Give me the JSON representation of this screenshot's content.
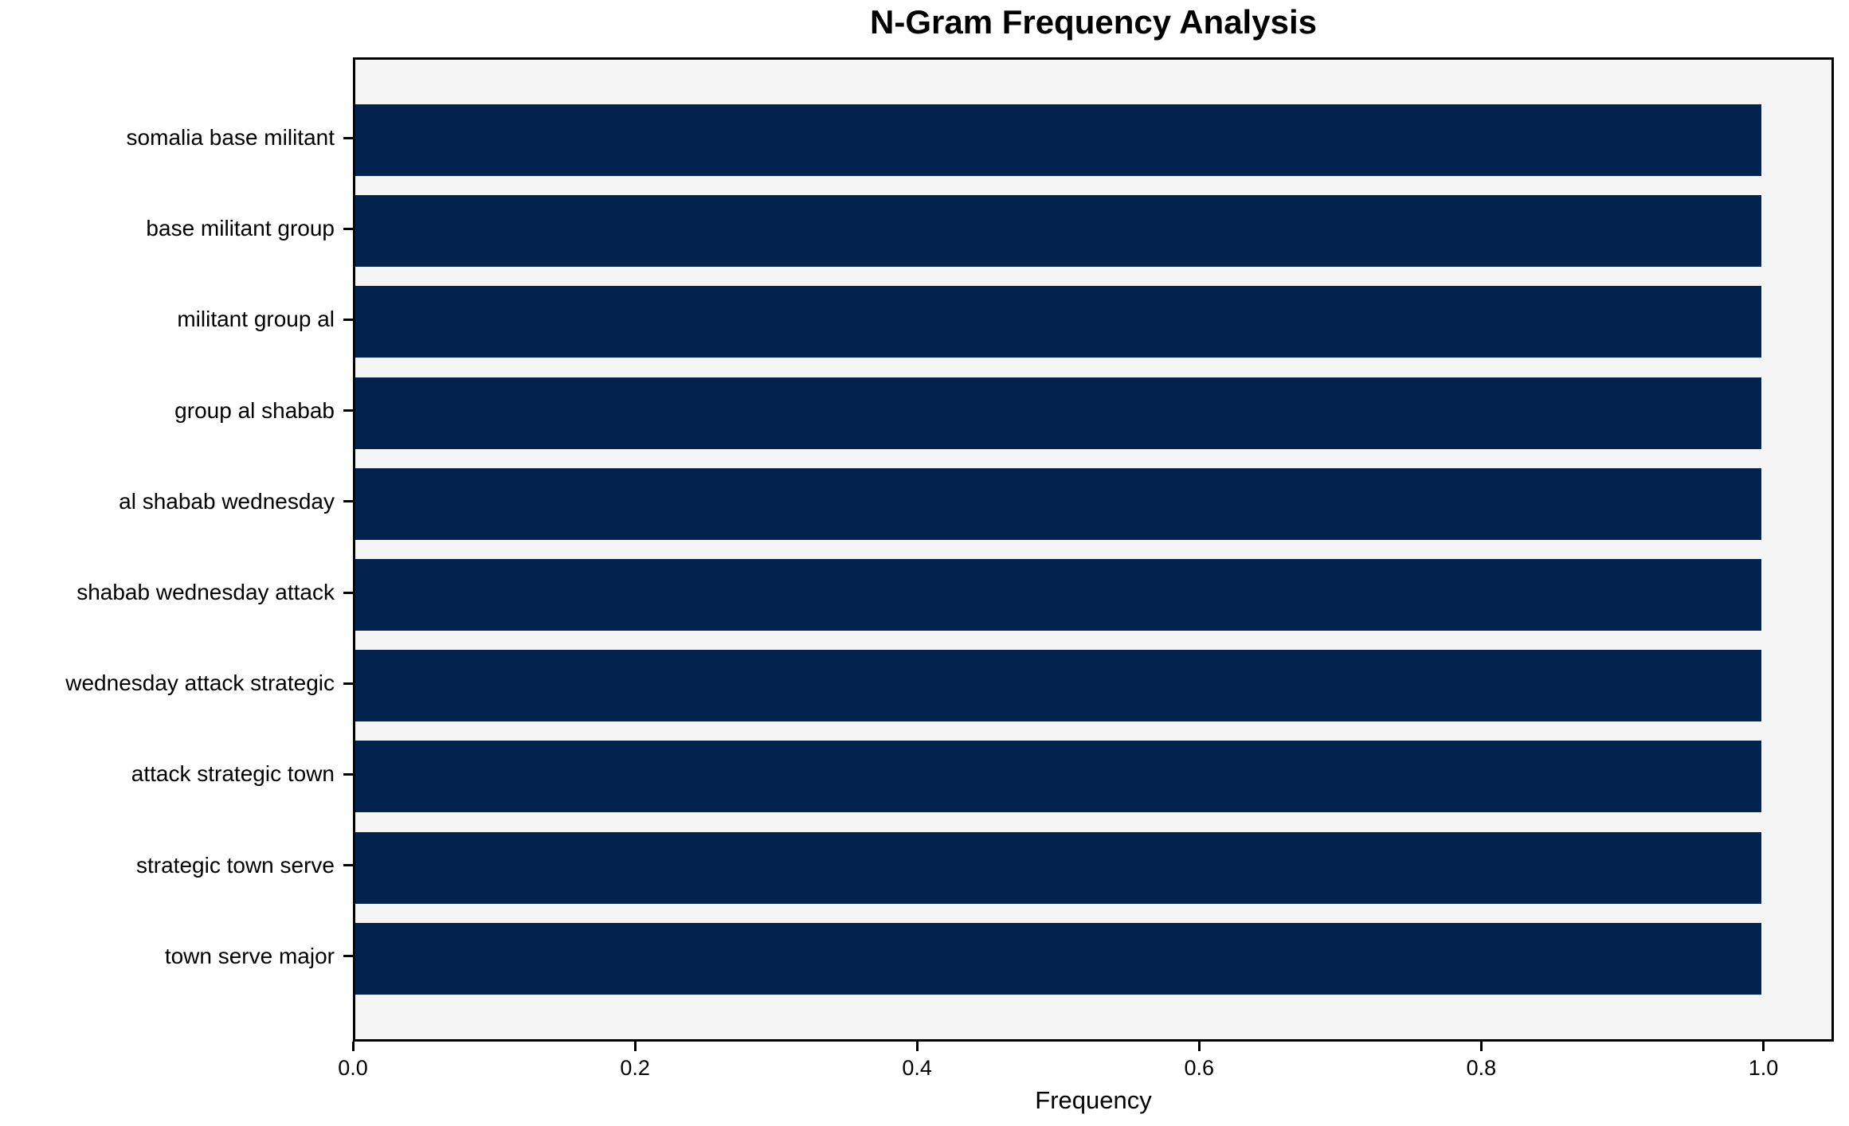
{
  "chart_data": {
    "type": "bar",
    "orientation": "horizontal",
    "title": "N-Gram Frequency Analysis",
    "xlabel": "Frequency",
    "ylabel": "",
    "categories": [
      "somalia base militant",
      "base militant group",
      "militant group al",
      "group al shabab",
      "al shabab wednesday",
      "shabab wednesday attack",
      "wednesday attack strategic",
      "attack strategic town",
      "strategic town serve",
      "town serve major"
    ],
    "values": [
      1.0,
      1.0,
      1.0,
      1.0,
      1.0,
      1.0,
      1.0,
      1.0,
      1.0,
      1.0
    ],
    "xlim": [
      0,
      1.05
    ],
    "xtick_labels": [
      "0.0",
      "0.2",
      "0.4",
      "0.6",
      "0.8",
      "1.0"
    ],
    "xtick_values": [
      0.0,
      0.2,
      0.4,
      0.6,
      0.8,
      1.0
    ],
    "grid": false,
    "legend_position": null,
    "colors": {
      "bar": "#02234e",
      "plot_background": "#f5f5f5",
      "figure_background": "#ffffff",
      "spine": "#000000",
      "text": "#000000"
    }
  }
}
